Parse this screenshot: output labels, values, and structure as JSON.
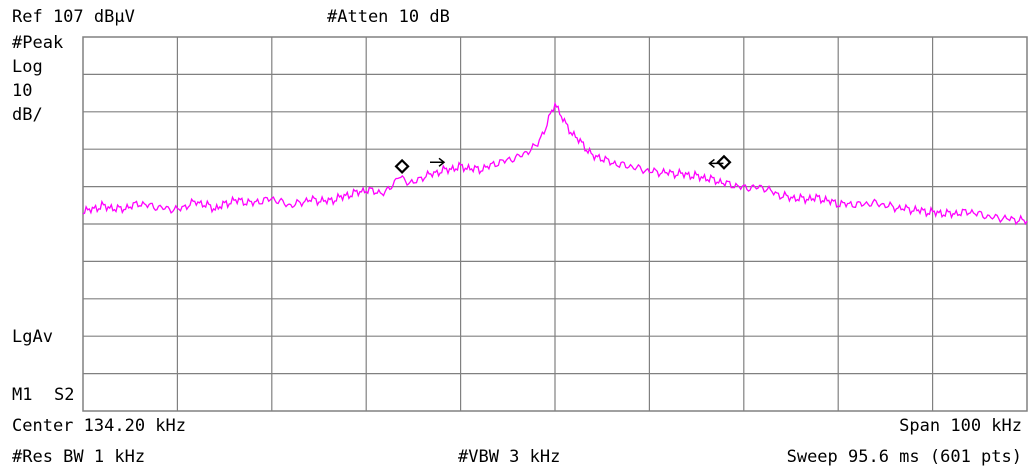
{
  "header": {
    "ref_level": "Ref 107 dBµV",
    "attenuation": "#Atten 10 dB"
  },
  "left_panel": {
    "detector": "#Peak",
    "scale_type": "Log",
    "scale_value": "10",
    "scale_unit": "dB/",
    "averaging": "LgAv",
    "marker_mode_m1": "M1",
    "marker_mode_s2": "S2"
  },
  "footer": {
    "center": "Center 134.20 kHz",
    "span": "Span 100 kHz",
    "res_bw": "#Res BW 1 kHz",
    "vbw": "#VBW 3 kHz",
    "sweep": "Sweep 95.6 ms (601 pts)"
  },
  "colors": {
    "trace": "#ff00ff",
    "grid": "#808080",
    "markers": "#000000"
  },
  "chart_data": {
    "type": "line",
    "title": "",
    "xlabel": "",
    "ylabel": "",
    "x_unit": "kHz",
    "y_unit": "dBµV",
    "xlim": [
      84.2,
      184.2
    ],
    "ylim": [
      7,
      107
    ],
    "reference_level": 107,
    "scale_db_per_div": 10,
    "grid": true,
    "divisions": {
      "x": 10,
      "y": 10
    },
    "series": [
      {
        "name": "",
        "x": [
          84.2,
          86.2,
          88.2,
          90.2,
          92.2,
          94.2,
          96.2,
          98.2,
          100.2,
          102.2,
          104.2,
          106.2,
          108.2,
          110.2,
          112.2,
          114.2,
          116.2,
          117.7,
          118.2,
          119.2,
          120.2,
          122.2,
          124.2,
          126.2,
          128.2,
          130.2,
          131.2,
          132.2,
          133.2,
          134.2,
          135.2,
          136.2,
          137.2,
          138.2,
          139.2,
          140.2,
          142.2,
          144.2,
          146.2,
          148.2,
          150.2,
          152.2,
          154.2,
          156.2,
          158.2,
          160.2,
          162.2,
          164.2,
          166.2,
          168.2,
          170.2,
          172.2,
          174.2,
          176.2,
          178.2,
          180.2,
          182.2,
          184.2
        ],
        "y": [
          60.2,
          61.8,
          60.9,
          62.5,
          61.4,
          60.8,
          63.0,
          61.1,
          63.4,
          62.6,
          63.8,
          61.9,
          63.5,
          63.1,
          64.7,
          66.1,
          65.2,
          69.8,
          68.7,
          67.9,
          69.6,
          71.2,
          72.3,
          71.5,
          73.4,
          74.8,
          76.2,
          77.9,
          82.6,
          89.4,
          84.1,
          80.7,
          78.2,
          75.1,
          74.6,
          73.3,
          72.4,
          71.1,
          70.7,
          70.2,
          69.3,
          67.9,
          66.7,
          66.8,
          64.5,
          63.7,
          63.9,
          62.4,
          62.2,
          62.6,
          61.4,
          60.8,
          60.1,
          59.7,
          60.3,
          58.9,
          58.4,
          57.8
        ]
      }
    ],
    "markers": [
      {
        "label": "",
        "x": 118.0,
        "y": 72.4,
        "shape": "diamond"
      },
      {
        "label": "",
        "x": 152.1,
        "y": 73.5,
        "shape": "diamond"
      }
    ],
    "arrows": [
      {
        "x": 121.7,
        "y": 73.5,
        "direction": "right"
      },
      {
        "x": 151.3,
        "y": 73.2,
        "direction": "left"
      }
    ]
  }
}
